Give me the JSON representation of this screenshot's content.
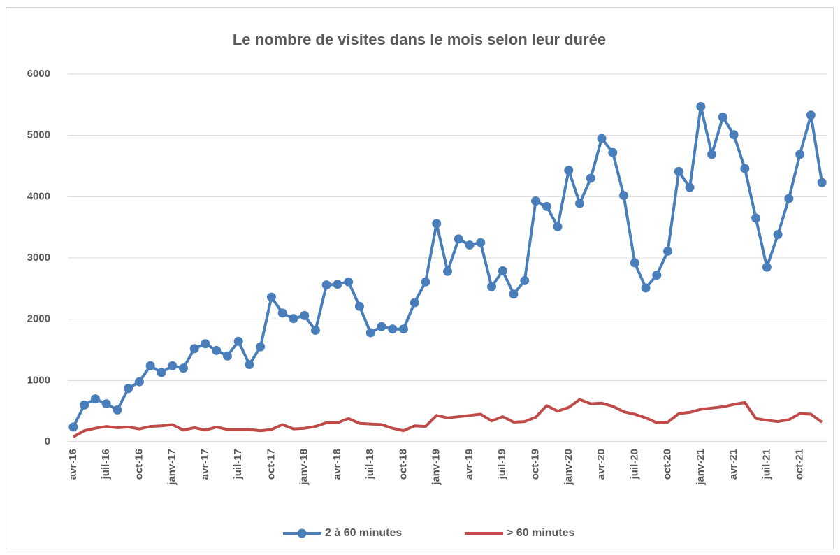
{
  "chart_data": {
    "type": "line",
    "title": "Le nombre de visites dans le mois selon leur durée",
    "categories": [
      "avr-16",
      null,
      null,
      "juil-16",
      null,
      null,
      "oct-16",
      null,
      null,
      "janv-17",
      null,
      null,
      "avr-17",
      null,
      null,
      "juil-17",
      null,
      null,
      "oct-17",
      null,
      null,
      "janv-18",
      null,
      null,
      "avr-18",
      null,
      null,
      "juil-18",
      null,
      null,
      "oct-18",
      null,
      null,
      "janv-19",
      null,
      null,
      "avr-19",
      null,
      null,
      "juil-19",
      null,
      null,
      "oct-19",
      null,
      null,
      "janv-20",
      null,
      null,
      "avr-20",
      null,
      null,
      "juil-20",
      null,
      null,
      "oct-20",
      null,
      null,
      "janv-21",
      null,
      null,
      "avr-21",
      null,
      null,
      "juil-21",
      null,
      null,
      "oct-21",
      null,
      null
    ],
    "series": [
      {
        "name": "2 à 60 minutes",
        "color": "#4a7ebb",
        "marker": true,
        "values": [
          240,
          600,
          700,
          620,
          520,
          870,
          980,
          1240,
          1130,
          1240,
          1200,
          1520,
          1600,
          1490,
          1400,
          1640,
          1260,
          1550,
          2360,
          2100,
          2010,
          2060,
          1820,
          2560,
          2570,
          2610,
          2210,
          1780,
          1880,
          1840,
          1840,
          2270,
          2610,
          3560,
          2780,
          3310,
          3210,
          3250,
          2530,
          2790,
          2410,
          2630,
          3930,
          3840,
          3510,
          4430,
          3890,
          4300,
          4950,
          4720,
          4020,
          2920,
          2510,
          2720,
          3110,
          4410,
          4150,
          5470,
          4690,
          5300,
          5010,
          4460,
          3650,
          2850,
          3380,
          3970,
          4690,
          5330,
          4230
        ]
      },
      {
        "name": "> 60 minutes",
        "color": "#be4b48",
        "marker": false,
        "values": [
          80,
          180,
          220,
          250,
          230,
          240,
          210,
          250,
          260,
          280,
          190,
          230,
          190,
          240,
          200,
          200,
          200,
          180,
          200,
          280,
          210,
          220,
          250,
          310,
          310,
          380,
          300,
          290,
          280,
          220,
          180,
          260,
          250,
          430,
          390,
          410,
          430,
          450,
          340,
          410,
          320,
          330,
          400,
          590,
          500,
          560,
          690,
          620,
          630,
          580,
          490,
          450,
          390,
          310,
          320,
          460,
          480,
          530,
          550,
          570,
          610,
          640,
          380,
          350,
          330,
          360,
          460,
          450,
          320
        ]
      }
    ],
    "ylim": [
      0,
      6000
    ],
    "yticks": [
      0,
      1000,
      2000,
      3000,
      4000,
      5000,
      6000
    ],
    "grid": true,
    "legend": "bottom"
  }
}
